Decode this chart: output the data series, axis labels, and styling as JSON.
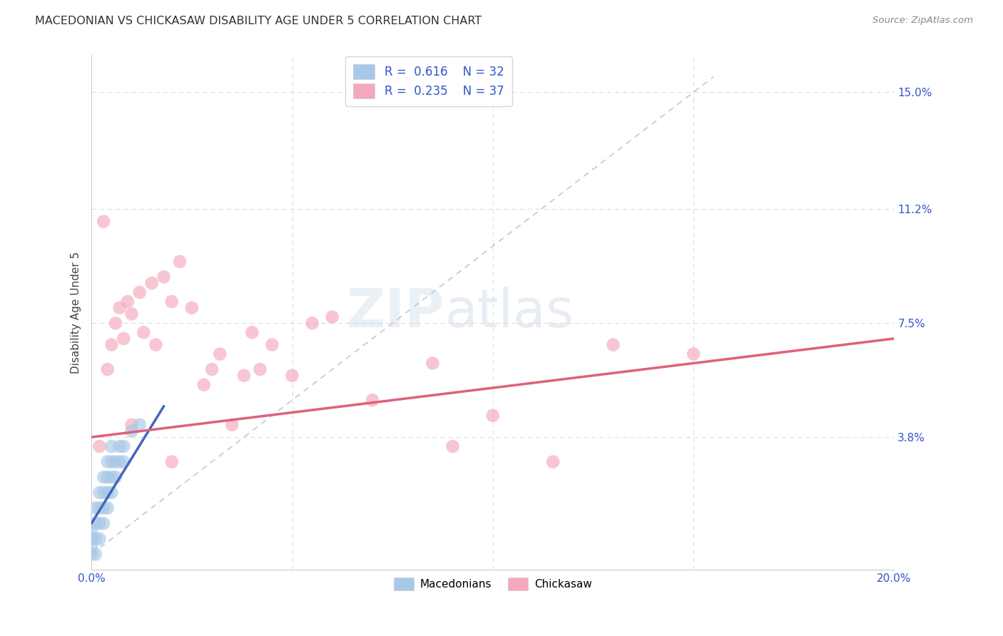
{
  "title": "MACEDONIAN VS CHICKASAW DISABILITY AGE UNDER 5 CORRELATION CHART",
  "source": "Source: ZipAtlas.com",
  "ylabel_label": "Disability Age Under 5",
  "ytick_labels": [
    "3.8%",
    "7.5%",
    "11.2%",
    "15.0%"
  ],
  "ytick_values": [
    0.038,
    0.075,
    0.112,
    0.15
  ],
  "xlim": [
    0.0,
    0.2
  ],
  "ylim": [
    -0.005,
    0.162
  ],
  "macedonian_R": "0.616",
  "macedonian_N": "32",
  "chickasaw_R": "0.235",
  "chickasaw_N": "37",
  "macedonian_color": "#a8c8e8",
  "chickasaw_color": "#f5a8bc",
  "macedonian_line_color": "#4466bb",
  "chickasaw_line_color": "#e0607a",
  "diagonal_color": "#c0c8d8",
  "mac_line_x": [
    0.0,
    0.018
  ],
  "mac_line_y": [
    0.01,
    0.048
  ],
  "chick_line_x": [
    0.0,
    0.2
  ],
  "chick_line_y": [
    0.038,
    0.07
  ],
  "macedonian_points": [
    [
      0.0,
      0.0
    ],
    [
      0.0,
      0.002
    ],
    [
      0.0,
      0.005
    ],
    [
      0.0,
      0.008
    ],
    [
      0.001,
      0.0
    ],
    [
      0.001,
      0.005
    ],
    [
      0.001,
      0.01
    ],
    [
      0.001,
      0.015
    ],
    [
      0.002,
      0.005
    ],
    [
      0.002,
      0.01
    ],
    [
      0.002,
      0.015
    ],
    [
      0.002,
      0.02
    ],
    [
      0.003,
      0.01
    ],
    [
      0.003,
      0.015
    ],
    [
      0.003,
      0.02
    ],
    [
      0.003,
      0.025
    ],
    [
      0.004,
      0.015
    ],
    [
      0.004,
      0.02
    ],
    [
      0.004,
      0.025
    ],
    [
      0.004,
      0.03
    ],
    [
      0.005,
      0.02
    ],
    [
      0.005,
      0.025
    ],
    [
      0.005,
      0.03
    ],
    [
      0.005,
      0.035
    ],
    [
      0.006,
      0.025
    ],
    [
      0.006,
      0.03
    ],
    [
      0.007,
      0.03
    ],
    [
      0.007,
      0.035
    ],
    [
      0.008,
      0.03
    ],
    [
      0.008,
      0.035
    ],
    [
      0.01,
      0.04
    ],
    [
      0.012,
      0.042
    ]
  ],
  "chickasaw_points": [
    [
      0.002,
      0.035
    ],
    [
      0.004,
      0.06
    ],
    [
      0.005,
      0.068
    ],
    [
      0.006,
      0.075
    ],
    [
      0.007,
      0.08
    ],
    [
      0.008,
      0.07
    ],
    [
      0.009,
      0.082
    ],
    [
      0.01,
      0.078
    ],
    [
      0.012,
      0.085
    ],
    [
      0.013,
      0.072
    ],
    [
      0.015,
      0.088
    ],
    [
      0.016,
      0.068
    ],
    [
      0.018,
      0.09
    ],
    [
      0.02,
      0.082
    ],
    [
      0.022,
      0.095
    ],
    [
      0.025,
      0.08
    ],
    [
      0.028,
      0.055
    ],
    [
      0.03,
      0.06
    ],
    [
      0.032,
      0.065
    ],
    [
      0.035,
      0.042
    ],
    [
      0.038,
      0.058
    ],
    [
      0.04,
      0.072
    ],
    [
      0.042,
      0.06
    ],
    [
      0.045,
      0.068
    ],
    [
      0.05,
      0.058
    ],
    [
      0.055,
      0.075
    ],
    [
      0.06,
      0.077
    ],
    [
      0.07,
      0.05
    ],
    [
      0.085,
      0.062
    ],
    [
      0.09,
      0.035
    ],
    [
      0.1,
      0.045
    ],
    [
      0.115,
      0.03
    ],
    [
      0.13,
      0.068
    ],
    [
      0.15,
      0.065
    ],
    [
      0.003,
      0.108
    ],
    [
      0.01,
      0.042
    ],
    [
      0.02,
      0.03
    ]
  ]
}
